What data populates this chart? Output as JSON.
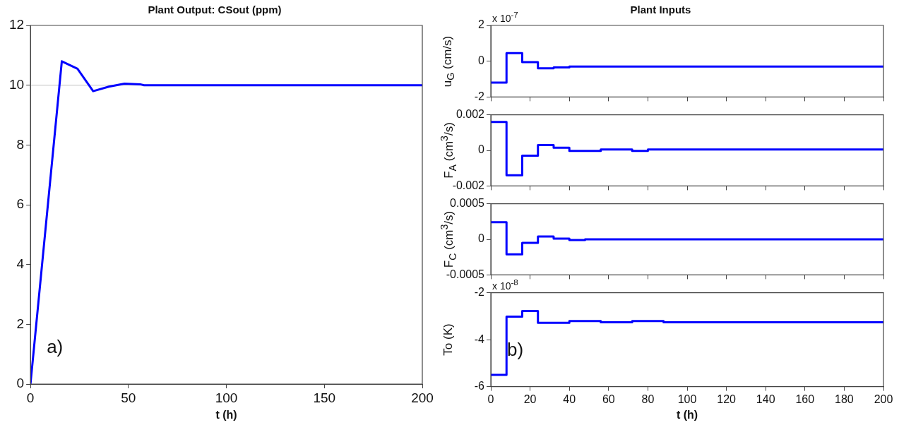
{
  "chart_data": [
    {
      "type": "line",
      "title": "Plant Output: CSout (ppm)",
      "xlabel": "t (h)",
      "marker": "none",
      "x": [
        0,
        16,
        24,
        32,
        40,
        48,
        56,
        58,
        200
      ],
      "values": [
        0,
        10.8,
        10.55,
        9.8,
        9.95,
        10.05,
        10.03,
        10.0,
        10.0
      ],
      "color": "#0000ff",
      "xlim": [
        0,
        200
      ],
      "xticks": [
        0,
        50,
        100,
        150,
        200
      ],
      "ylim": [
        0,
        12
      ],
      "yticks": [
        0,
        2,
        4,
        6,
        8,
        10,
        12
      ],
      "ref_lines": [
        {
          "axis": "y",
          "value": 10,
          "color": "#c0c0c0"
        }
      ],
      "annotations": [
        "a)"
      ]
    },
    {
      "type": "step",
      "title": "Plant Inputs",
      "ylabel": "u$_{G}$ (cm/s)",
      "marker": "none",
      "x": [
        0,
        8,
        16,
        24,
        32,
        40,
        200
      ],
      "values": [
        -1.2,
        0.45,
        -0.05,
        -0.4,
        -0.35,
        -0.3,
        -0.3
      ],
      "color": "#0000ff",
      "xlim": [
        0,
        200
      ],
      "xticks": [
        0,
        20,
        40,
        60,
        80,
        100,
        120,
        140,
        160,
        180,
        200
      ],
      "ylim": [
        -2,
        2
      ],
      "yticks": [
        -2,
        0,
        2
      ],
      "tick_labels": "y",
      "annotations": [
        "x 10$^{-7}$"
      ]
    },
    {
      "type": "step",
      "ylabel": "F$_{A}$ (cm$^{3}$/s)",
      "marker": "none",
      "x": [
        0,
        8,
        16,
        24,
        32,
        40,
        56,
        72,
        80,
        200
      ],
      "values": [
        0.0016,
        -0.0014,
        -0.0003,
        0.0003,
        0.00015,
        -3e-05,
        5e-05,
        -3e-05,
        5e-05,
        5e-05
      ],
      "color": "#0000ff",
      "xlim": [
        0,
        200
      ],
      "xticks": [
        0,
        20,
        40,
        60,
        80,
        100,
        120,
        140,
        160,
        180,
        200
      ],
      "ylim": [
        -0.002,
        0.002
      ],
      "yticks": [
        -0.002,
        0,
        0.002
      ],
      "tick_labels": "y"
    },
    {
      "type": "step",
      "ylabel": "F$_{C}$ (cm$^{3}$/s)",
      "marker": "none",
      "x": [
        0,
        8,
        16,
        24,
        32,
        40,
        48,
        200
      ],
      "values": [
        0.00024,
        -0.00021,
        -5e-05,
        4e-05,
        1e-05,
        -1e-05,
        0,
        0
      ],
      "color": "#0000ff",
      "xlim": [
        0,
        200
      ],
      "xticks": [
        0,
        20,
        40,
        60,
        80,
        100,
        120,
        140,
        160,
        180,
        200
      ],
      "ylim": [
        -0.0005,
        0.0005
      ],
      "yticks": [
        -0.0005,
        0,
        0.0005
      ],
      "tick_labels": "y"
    },
    {
      "type": "step",
      "ylabel": "To (K)",
      "xlabel": "t (h)",
      "marker": "none",
      "x": [
        0,
        8,
        16,
        24,
        40,
        56,
        72,
        88,
        200
      ],
      "values": [
        -5.5,
        -3.02,
        -2.78,
        -3.28,
        -3.21,
        -3.26,
        -3.21,
        -3.26,
        -3.26
      ],
      "color": "#0000ff",
      "xlim": [
        0,
        200
      ],
      "xticks": [
        0,
        20,
        40,
        60,
        80,
        100,
        120,
        140,
        160,
        180,
        200
      ],
      "ylim": [
        -6,
        -2
      ],
      "yticks": [
        -6,
        -4,
        -2
      ],
      "annotations": [
        "x 10$^{-8}$",
        "b)"
      ]
    }
  ]
}
